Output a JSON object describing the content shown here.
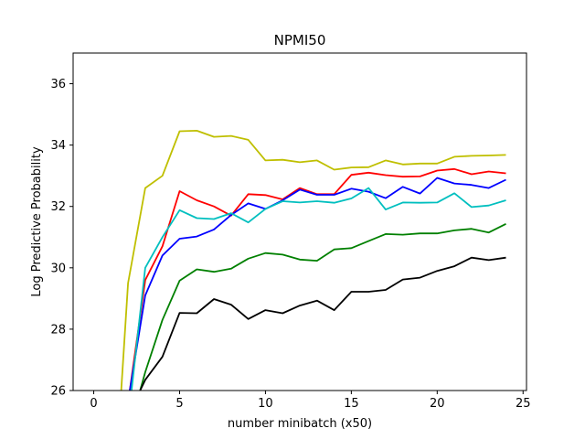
{
  "chart_data": {
    "type": "line",
    "title": "NPMI50",
    "xlabel": "number minibatch (x50)",
    "ylabel": "Log Predictive Probability",
    "xlim": [
      -1.2,
      25.2
    ],
    "ylim": [
      26,
      37
    ],
    "xticks": [
      "0",
      "5",
      "10",
      "15",
      "20",
      "25"
    ],
    "yticks": [
      "26",
      "28",
      "30",
      "32",
      "34",
      "36"
    ],
    "grid": false,
    "legend": "none",
    "series": [
      {
        "color": "#bfbf00",
        "x": [
          1.6,
          2,
          3,
          4,
          5,
          6,
          7,
          8,
          9,
          10,
          11,
          12,
          13,
          14,
          15,
          16,
          17,
          18,
          19,
          20,
          21,
          22,
          23,
          24
        ],
        "y": [
          26.0,
          29.5,
          32.6,
          33.0,
          34.45,
          34.47,
          34.27,
          34.3,
          34.17,
          33.5,
          33.52,
          33.44,
          33.5,
          33.2,
          33.27,
          33.28,
          33.5,
          33.37,
          33.4,
          33.4,
          33.62,
          33.65,
          33.66,
          33.68
        ]
      },
      {
        "color": "#ff0000",
        "x": [
          2.1,
          3,
          4,
          5,
          6,
          7,
          8,
          9,
          10,
          11,
          12,
          13,
          14,
          15,
          16,
          17,
          18,
          19,
          20,
          21,
          22,
          23,
          24
        ],
        "y": [
          26.0,
          29.6,
          30.7,
          32.5,
          32.2,
          32.0,
          31.7,
          32.4,
          32.37,
          32.23,
          32.6,
          32.4,
          32.4,
          33.03,
          33.1,
          33.02,
          32.97,
          32.98,
          33.17,
          33.22,
          33.05,
          33.14,
          33.08
        ]
      },
      {
        "color": "#0000ff",
        "x": [
          2.1,
          3,
          4,
          5,
          6,
          7,
          8,
          9,
          10,
          11,
          12,
          13,
          14,
          15,
          16,
          17,
          18,
          19,
          20,
          21,
          22,
          23,
          24
        ],
        "y": [
          26.0,
          29.1,
          30.4,
          30.95,
          31.02,
          31.25,
          31.72,
          32.1,
          31.92,
          32.2,
          32.55,
          32.38,
          32.38,
          32.58,
          32.48,
          32.27,
          32.64,
          32.42,
          32.93,
          32.75,
          32.7,
          32.6,
          32.87
        ]
      },
      {
        "color": "#00bfbf",
        "x": [
          2.2,
          3,
          4,
          5,
          6,
          7,
          8,
          9,
          10,
          11,
          12,
          13,
          14,
          15,
          16,
          17,
          18,
          19,
          20,
          21,
          22,
          23,
          24
        ],
        "y": [
          26.0,
          30.0,
          31.0,
          31.88,
          31.62,
          31.59,
          31.78,
          31.48,
          31.92,
          32.17,
          32.13,
          32.17,
          32.12,
          32.26,
          32.6,
          31.9,
          32.13,
          32.12,
          32.13,
          32.43,
          31.98,
          32.03,
          32.2
        ]
      },
      {
        "color": "#008000",
        "x": [
          2.7,
          3,
          4,
          5,
          6,
          7,
          8,
          9,
          10,
          11,
          12,
          13,
          14,
          15,
          16,
          17,
          18,
          19,
          20,
          21,
          22,
          23,
          24
        ],
        "y": [
          26.0,
          26.6,
          28.3,
          29.58,
          29.95,
          29.87,
          29.97,
          30.3,
          30.48,
          30.43,
          30.27,
          30.23,
          30.6,
          30.64,
          30.87,
          31.1,
          31.08,
          31.12,
          31.12,
          31.22,
          31.27,
          31.15,
          31.43
        ]
      },
      {
        "color": "#000000",
        "x": [
          2.7,
          3,
          4,
          5,
          6,
          7,
          8,
          9,
          10,
          11,
          12,
          13,
          14,
          15,
          16,
          17,
          18,
          19,
          20,
          21,
          22,
          23,
          24
        ],
        "y": [
          26.0,
          26.35,
          27.1,
          28.53,
          28.52,
          28.98,
          28.8,
          28.33,
          28.62,
          28.52,
          28.77,
          28.93,
          28.62,
          29.22,
          29.22,
          29.28,
          29.62,
          29.68,
          29.9,
          30.05,
          30.33,
          30.25,
          30.33
        ]
      }
    ]
  }
}
